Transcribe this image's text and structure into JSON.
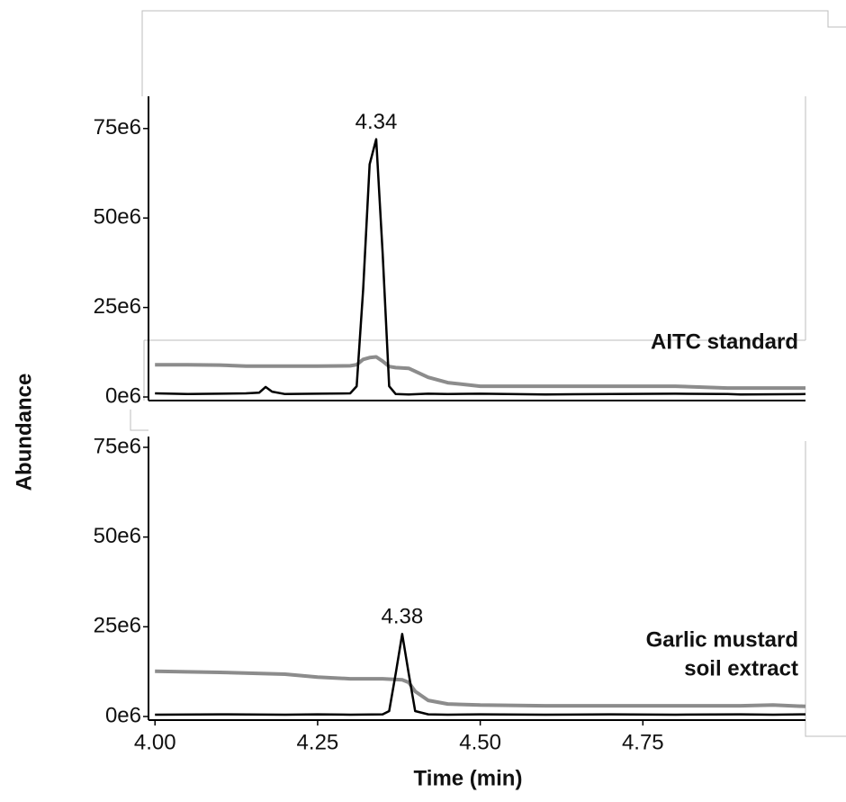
{
  "chart_data": [
    {
      "type": "line",
      "ylabel": "Abundance",
      "label_lines": [
        "AITC standard"
      ],
      "annotations": [
        {
          "text": "4.34",
          "x": 4.34,
          "y": 72000000
        }
      ],
      "xlim": [
        3.99,
        5.0
      ],
      "ylim": [
        -1000000,
        84000000
      ],
      "yticks": [
        {
          "value": 0,
          "label": "0e6"
        },
        {
          "value": 25000000,
          "label": "25e6"
        },
        {
          "value": 50000000,
          "label": "50e6"
        },
        {
          "value": 75000000,
          "label": "75e6"
        }
      ],
      "x": [
        4.0,
        4.05,
        4.1,
        4.14,
        4.16,
        4.17,
        4.18,
        4.2,
        4.25,
        4.3,
        4.31,
        4.32,
        4.33,
        4.34,
        4.35,
        4.36,
        4.37,
        4.39,
        4.42,
        4.45,
        4.5,
        4.6,
        4.7,
        4.8,
        4.88,
        4.9,
        5.0
      ],
      "series": [
        {
          "color": "#000000",
          "values": [
            1000000,
            800000,
            900000,
            1000000,
            1200000,
            2800000,
            1500000,
            800000,
            900000,
            1000000,
            3000000,
            30000000,
            65000000,
            72000000,
            40000000,
            3000000,
            800000,
            700000,
            900000,
            800000,
            900000,
            700000,
            800000,
            900000,
            800000,
            700000,
            800000
          ]
        },
        {
          "color": "#8c8c8c",
          "values": [
            9000000,
            9000000,
            8900000,
            8600000,
            8600000,
            8600000,
            8600000,
            8600000,
            8600000,
            8700000,
            9000000,
            10500000,
            11000000,
            11200000,
            10000000,
            8500000,
            8200000,
            8000000,
            5500000,
            4000000,
            3000000,
            3000000,
            3000000,
            3000000,
            2500000,
            2500000,
            2500000
          ]
        }
      ]
    },
    {
      "type": "line",
      "xlabel": "Time (min)",
      "label_lines": [
        "Garlic mustard",
        "soil extract"
      ],
      "annotations": [
        {
          "text": "4.38",
          "x": 4.38,
          "y": 23000000
        }
      ],
      "xlim": [
        3.99,
        5.0
      ],
      "ylim": [
        -1000000,
        78000000
      ],
      "xticks": [
        {
          "value": 4.0,
          "label": "4.00"
        },
        {
          "value": 4.25,
          "label": "4.25"
        },
        {
          "value": 4.5,
          "label": "4.50"
        },
        {
          "value": 4.75,
          "label": "4.75"
        }
      ],
      "yticks": [
        {
          "value": 0,
          "label": "0e6"
        },
        {
          "value": 25000000,
          "label": "25e6"
        },
        {
          "value": 50000000,
          "label": "50e6"
        },
        {
          "value": 75000000,
          "label": "75e6"
        }
      ],
      "x": [
        4.0,
        4.1,
        4.2,
        4.25,
        4.3,
        4.35,
        4.36,
        4.37,
        4.38,
        4.39,
        4.4,
        4.42,
        4.45,
        4.5,
        4.6,
        4.7,
        4.8,
        4.9,
        4.95,
        5.0
      ],
      "series": [
        {
          "color": "#000000",
          "values": [
            500000,
            600000,
            500000,
            600000,
            500000,
            600000,
            1500000,
            12000000,
            23000000,
            12000000,
            1500000,
            600000,
            500000,
            600000,
            500000,
            600000,
            500000,
            600000,
            500000,
            600000
          ]
        },
        {
          "color": "#8c8c8c",
          "values": [
            12600000,
            12300000,
            11800000,
            11000000,
            10500000,
            10500000,
            10400000,
            10300000,
            10200000,
            9500000,
            7000000,
            4500000,
            3500000,
            3200000,
            3000000,
            3000000,
            3000000,
            3000000,
            3200000,
            2800000
          ]
        }
      ]
    }
  ]
}
